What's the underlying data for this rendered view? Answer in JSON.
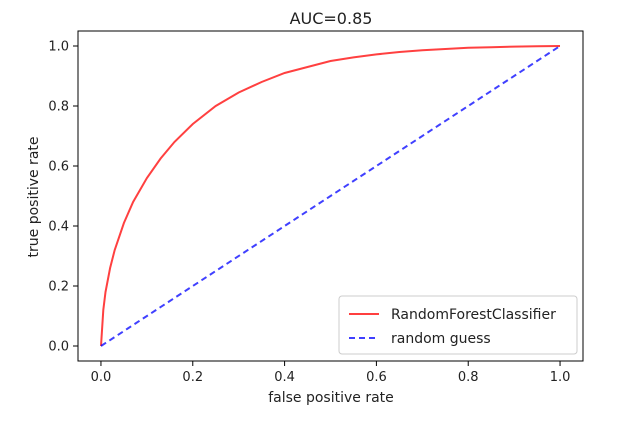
{
  "chart_data": {
    "type": "line",
    "title": "AUC=0.85",
    "xlabel": "false positive rate",
    "ylabel": "true positive rate",
    "xlim": [
      -0.05,
      1.05
    ],
    "ylim": [
      -0.05,
      1.05
    ],
    "xticks": [
      0.0,
      0.2,
      0.4,
      0.6,
      0.8,
      1.0
    ],
    "xtick_labels": [
      "0.0",
      "0.2",
      "0.4",
      "0.6",
      "0.8",
      "1.0"
    ],
    "yticks": [
      0.0,
      0.2,
      0.4,
      0.6,
      0.8,
      1.0
    ],
    "ytick_labels": [
      "0.0",
      "0.2",
      "0.4",
      "0.6",
      "0.8",
      "1.0"
    ],
    "grid": false,
    "legend_position": "bottom-right",
    "series": [
      {
        "name": "RandomForestClassifier",
        "color": "#ff0000",
        "style": "solid",
        "x": [
          0,
          0.005,
          0.01,
          0.02,
          0.03,
          0.05,
          0.07,
          0.1,
          0.13,
          0.16,
          0.2,
          0.25,
          0.3,
          0.35,
          0.4,
          0.45,
          0.5,
          0.55,
          0.6,
          0.65,
          0.7,
          0.75,
          0.8,
          0.85,
          0.9,
          0.95,
          1.0
        ],
        "y": [
          0,
          0.12,
          0.18,
          0.26,
          0.32,
          0.41,
          0.48,
          0.56,
          0.625,
          0.68,
          0.74,
          0.8,
          0.845,
          0.88,
          0.91,
          0.93,
          0.95,
          0.962,
          0.972,
          0.98,
          0.986,
          0.99,
          0.994,
          0.996,
          0.998,
          0.999,
          1.0
        ]
      },
      {
        "name": "random guess",
        "color": "#0000ff",
        "style": "dashed",
        "x": [
          0,
          1
        ],
        "y": [
          0,
          1
        ]
      }
    ]
  }
}
